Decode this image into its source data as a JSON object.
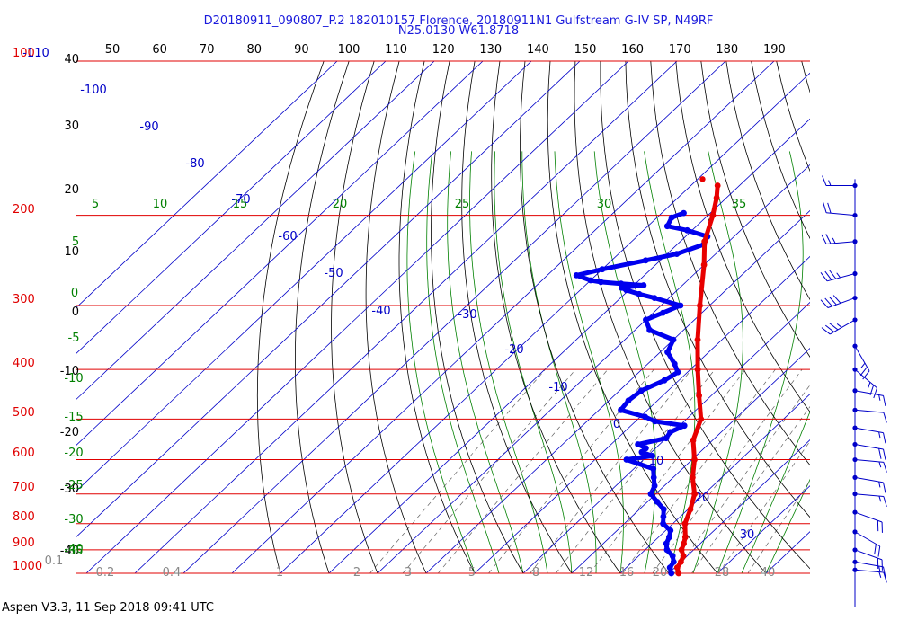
{
  "chart_data": {
    "type": "skew-t",
    "title_line1": "D20180911_090807_P.2 182010157 Florence, 20180911N1 Gulfstream G-IV SP, N49RF",
    "title_line2": "N25.0130 W61.8718",
    "footer": "Aspen V3.3, 11 Sep 2018  09:41 UTC",
    "pressure_levels_hpa": [
      "100",
      "200",
      "300",
      "400",
      "500",
      "600",
      "700",
      "800",
      "900",
      "1000"
    ],
    "left_axis_ticks": [
      "40",
      "30",
      "20",
      "10",
      "0",
      "-10",
      "-20",
      "-30",
      "-40"
    ],
    "top_axis_ticks": [
      "50",
      "60",
      "70",
      "80",
      "90",
      "100",
      "110",
      "120",
      "130",
      "140",
      "150",
      "160",
      "170",
      "180",
      "190"
    ],
    "isotherm_labels": [
      "-110",
      "-100",
      "-90",
      "-80",
      "-70",
      "-60",
      "-50",
      "-40",
      "-30",
      "-20",
      "-10",
      "0",
      "10",
      "20",
      "30"
    ],
    "dry_adiabat_labels": [
      "5",
      "0",
      "-5",
      "-10",
      "-15",
      "-20",
      "-25",
      "-30",
      "-35",
      "-40"
    ],
    "moist_adiabat_labels": [
      "5",
      "10",
      "15",
      "20",
      "25",
      "30",
      "35"
    ],
    "mixing_ratio_labels": [
      "0.1",
      "0.2",
      "0.4",
      "1",
      "2",
      "3",
      "5",
      "8",
      "12",
      "16",
      "20",
      "28",
      "40"
    ],
    "temperature": {
      "name": "Temperature",
      "color": "#e80000",
      "points": [
        {
          "p": 1000,
          "t": 22.0
        },
        {
          "p": 975,
          "t": 20.5
        },
        {
          "p": 950,
          "t": 20.0
        },
        {
          "p": 925,
          "t": 19.2
        },
        {
          "p": 900,
          "t": 17.5
        },
        {
          "p": 875,
          "t": 16.6
        },
        {
          "p": 850,
          "t": 15.5
        },
        {
          "p": 800,
          "t": 12.5
        },
        {
          "p": 750,
          "t": 10.5
        },
        {
          "p": 700,
          "t": 8.0
        },
        {
          "p": 650,
          "t": 4.0
        },
        {
          "p": 600,
          "t": 0.5
        },
        {
          "p": 550,
          "t": -4.0
        },
        {
          "p": 500,
          "t": -7.0
        },
        {
          "p": 450,
          "t": -12.5
        },
        {
          "p": 400,
          "t": -18.5
        },
        {
          "p": 350,
          "t": -25.0
        },
        {
          "p": 300,
          "t": -32.0
        },
        {
          "p": 250,
          "t": -40.0
        },
        {
          "p": 225,
          "t": -45.0
        },
        {
          "p": 200,
          "t": -49.0
        },
        {
          "p": 185,
          "t": -52.0
        },
        {
          "p": 175,
          "t": -54.5
        }
      ],
      "isolated_point": {
        "p": 170,
        "t": -59.0
      }
    },
    "dewpoint": {
      "name": "Dewpoint",
      "color": "#0000ee",
      "points": [
        {
          "p": 1000,
          "t": 20.5
        },
        {
          "p": 975,
          "t": 19.0
        },
        {
          "p": 950,
          "t": 18.5
        },
        {
          "p": 925,
          "t": 17.0
        },
        {
          "p": 900,
          "t": 14.5
        },
        {
          "p": 875,
          "t": 13.0
        },
        {
          "p": 850,
          "t": 12.2
        },
        {
          "p": 825,
          "t": 11.0
        },
        {
          "p": 800,
          "t": 8.0
        },
        {
          "p": 775,
          "t": 6.5
        },
        {
          "p": 750,
          "t": 5.0
        },
        {
          "p": 725,
          "t": 2.0
        },
        {
          "p": 700,
          "t": -1.0
        },
        {
          "p": 675,
          "t": -2.0
        },
        {
          "p": 650,
          "t": -4.0
        },
        {
          "p": 625,
          "t": -6.0
        },
        {
          "p": 600,
          "t": -13.5
        },
        {
          "p": 590,
          "t": -9.0
        },
        {
          "p": 580,
          "t": -12.0
        },
        {
          "p": 570,
          "t": -12.0
        },
        {
          "p": 560,
          "t": -14.5
        },
        {
          "p": 545,
          "t": -10.0
        },
        {
          "p": 530,
          "t": -10.5
        },
        {
          "p": 515,
          "t": -9.0
        },
        {
          "p": 505,
          "t": -16.0
        },
        {
          "p": 495,
          "t": -19.0
        },
        {
          "p": 480,
          "t": -25.5
        },
        {
          "p": 460,
          "t": -26.0
        },
        {
          "p": 440,
          "t": -25.5
        },
        {
          "p": 420,
          "t": -23.0
        },
        {
          "p": 405,
          "t": -22.0
        },
        {
          "p": 390,
          "t": -24.5
        },
        {
          "p": 370,
          "t": -28.5
        },
        {
          "p": 350,
          "t": -30.0
        },
        {
          "p": 335,
          "t": -37.0
        },
        {
          "p": 320,
          "t": -40.0
        },
        {
          "p": 310,
          "t": -38.0
        },
        {
          "p": 300,
          "t": -36.0
        },
        {
          "p": 290,
          "t": -43.0
        },
        {
          "p": 285,
          "t": -47.0
        },
        {
          "p": 280,
          "t": -50.5
        },
        {
          "p": 277,
          "t": -52.0
        },
        {
          "p": 274,
          "t": -48.0
        },
        {
          "p": 272,
          "t": -53.0
        },
        {
          "p": 270,
          "t": -57.5
        },
        {
          "p": 268,
          "t": -60.0
        },
        {
          "p": 262,
          "t": -64.0
        },
        {
          "p": 255,
          "t": -60.0
        },
        {
          "p": 245,
          "t": -53.0
        },
        {
          "p": 238,
          "t": -48.0
        },
        {
          "p": 228,
          "t": -44.5
        },
        {
          "p": 220,
          "t": -45.5
        },
        {
          "p": 214,
          "t": -51.0
        },
        {
          "p": 210,
          "t": -56.0
        },
        {
          "p": 202,
          "t": -57.0
        },
        {
          "p": 198,
          "t": -55.5
        }
      ]
    },
    "wind_barbs": [
      {
        "p": 175,
        "speed_kt": 15,
        "dir_deg": 270
      },
      {
        "p": 200,
        "speed_kt": 20,
        "dir_deg": 275
      },
      {
        "p": 225,
        "speed_kt": 25,
        "dir_deg": 265
      },
      {
        "p": 260,
        "speed_kt": 35,
        "dir_deg": 255
      },
      {
        "p": 290,
        "speed_kt": 40,
        "dir_deg": 250
      },
      {
        "p": 320,
        "speed_kt": 35,
        "dir_deg": 240
      },
      {
        "p": 360,
        "speed_kt": 25,
        "dir_deg": 150
      },
      {
        "p": 400,
        "speed_kt": 25,
        "dir_deg": 130
      },
      {
        "p": 440,
        "speed_kt": 15,
        "dir_deg": 100
      },
      {
        "p": 480,
        "speed_kt": 10,
        "dir_deg": 95
      },
      {
        "p": 520,
        "speed_kt": 15,
        "dir_deg": 100
      },
      {
        "p": 560,
        "speed_kt": 20,
        "dir_deg": 100
      },
      {
        "p": 600,
        "speed_kt": 15,
        "dir_deg": 95
      },
      {
        "p": 650,
        "speed_kt": 15,
        "dir_deg": 100
      },
      {
        "p": 700,
        "speed_kt": 15,
        "dir_deg": 95
      },
      {
        "p": 760,
        "speed_kt": 20,
        "dir_deg": 110
      },
      {
        "p": 830,
        "speed_kt": 20,
        "dir_deg": 120
      },
      {
        "p": 900,
        "speed_kt": 20,
        "dir_deg": 110
      },
      {
        "p": 950,
        "speed_kt": 15,
        "dir_deg": 100
      },
      {
        "p": 985,
        "speed_kt": 15,
        "dir_deg": 95
      }
    ],
    "colors": {
      "isobar": "#e00000",
      "isotherm": "#0000c8",
      "dry_adiabat": "#000000",
      "moist_adiabat": "#008000",
      "mixing_ratio": "#606060",
      "title": "#1a1adc"
    }
  }
}
